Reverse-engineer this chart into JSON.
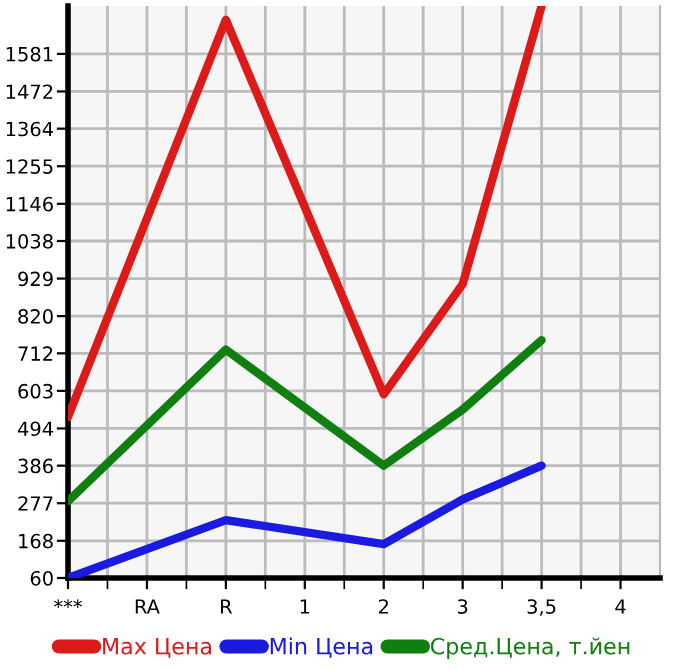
{
  "chart_data": {
    "type": "line",
    "categories": [
      "***",
      "RA",
      "R",
      "1",
      "2",
      "3",
      "3,5",
      "4"
    ],
    "series": [
      {
        "name": "Max Цена",
        "color": "#dd1a1a",
        "values": [
          527,
          null,
          1680,
          null,
          593,
          913,
          1720,
          null
        ]
      },
      {
        "name": "Min Цена",
        "color": "#1a1ae0",
        "values": [
          60,
          null,
          228,
          null,
          158,
          288,
          386,
          null
        ]
      },
      {
        "name": "Сред.Цена, т.йен",
        "color": "#0f7f0f",
        "values": [
          283,
          null,
          723,
          null,
          386,
          549,
          750,
          null
        ]
      }
    ],
    "ylim": [
      60,
      1720
    ],
    "yticks": [
      60,
      168,
      277,
      386,
      494,
      603,
      712,
      820,
      929,
      1038,
      1146,
      1255,
      1364,
      1472,
      1581
    ],
    "grid": true,
    "legend": "bottom",
    "marker": "none",
    "line_style": "solid"
  }
}
